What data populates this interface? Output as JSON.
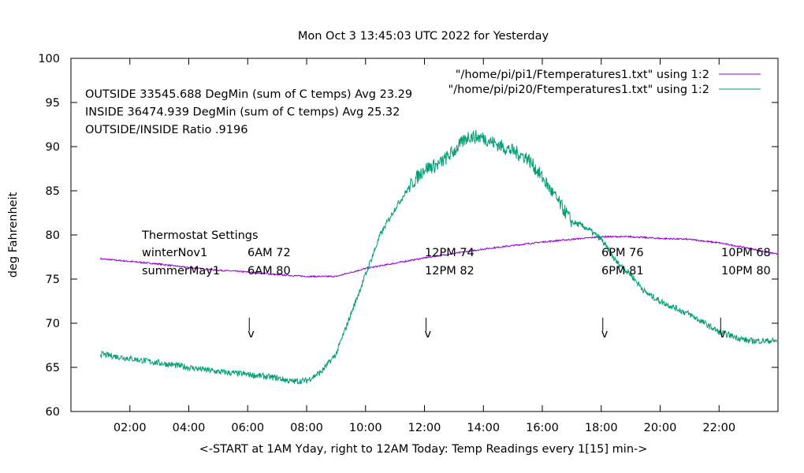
{
  "chart_data": {
    "type": "line",
    "title": "Mon Oct  3 13:45:03 UTC 2022 for Yesterday",
    "xlabel": "<-START at 1AM Yday, right to 12AM Today:  Temp Readings every 1[15] min->",
    "ylabel": "deg Fahrenheit",
    "ylim": [
      60,
      100
    ],
    "xlim_hours": [
      0,
      24
    ],
    "yticks": [
      60,
      65,
      70,
      75,
      80,
      85,
      90,
      95,
      100
    ],
    "xticks": [
      {
        "hour": 2,
        "label": "02:00"
      },
      {
        "hour": 4,
        "label": "04:00"
      },
      {
        "hour": 6,
        "label": "06:00"
      },
      {
        "hour": 8,
        "label": "08:00"
      },
      {
        "hour": 10,
        "label": "10:00"
      },
      {
        "hour": 12,
        "label": "12:00"
      },
      {
        "hour": 14,
        "label": "14:00"
      },
      {
        "hour": 16,
        "label": "16:00"
      },
      {
        "hour": 18,
        "label": "18:00"
      },
      {
        "hour": 20,
        "label": "20:00"
      },
      {
        "hour": 22,
        "label": "22:00"
      }
    ],
    "legend_position": "top-right",
    "grid": false,
    "series": [
      {
        "name": "\"/home/pi/pi1/Ftemperatures1.txt\" using 1:2",
        "color": "#9400d3",
        "x": [
          1,
          2,
          3,
          4,
          5,
          6,
          7,
          8,
          9,
          10,
          11,
          12,
          13,
          14,
          15,
          16,
          17,
          18,
          19,
          20,
          21,
          22,
          23,
          24
        ],
        "y": [
          77.3,
          77.0,
          76.7,
          76.3,
          76.0,
          75.8,
          75.5,
          75.3,
          75.3,
          76.2,
          76.8,
          77.4,
          77.9,
          78.4,
          78.8,
          79.2,
          79.5,
          79.8,
          79.8,
          79.6,
          79.5,
          79.1,
          78.5,
          77.8
        ]
      },
      {
        "name": "\"/home/pi/pi20/Ftemperatures1.txt\" using 1:2",
        "color": "#009e73",
        "x": [
          1,
          2,
          3,
          4,
          5,
          6,
          7,
          7.5,
          8,
          8.5,
          9,
          9.5,
          10,
          10.5,
          11,
          11.5,
          12,
          12.5,
          13,
          13.5,
          14,
          14.5,
          15,
          15.5,
          16,
          16.5,
          17,
          17.5,
          18,
          18.5,
          19,
          19.5,
          20,
          21,
          22,
          23,
          24
        ],
        "y": [
          66.5,
          66.0,
          65.5,
          65.0,
          64.5,
          64.2,
          63.8,
          63.4,
          63.5,
          64.5,
          66.5,
          71.0,
          75.5,
          80.0,
          83.0,
          85.5,
          87.5,
          88.0,
          89.5,
          91.2,
          91.0,
          90.2,
          89.5,
          88.7,
          86.5,
          84.0,
          81.5,
          80.8,
          79.5,
          77.0,
          75.5,
          73.5,
          72.5,
          71.0,
          69.0,
          68.0,
          68.0
        ]
      }
    ],
    "annotations": {
      "stats": [
        "OUTSIDE 33545.688 DegMin (sum of C temps) Avg 23.29",
        "INSIDE 36474.939 DegMin (sum of C temps) Avg 25.32",
        "OUTSIDE/INSIDE Ratio .9196"
      ],
      "thermostat_title": "Thermostat Settings",
      "thermostat_rows": [
        {
          "name": "winterNov1",
          "settings": [
            "6AM 72",
            "12PM 74",
            "6PM 76",
            "10PM 68"
          ]
        },
        {
          "name": "summerMay1",
          "settings": [
            "6AM 80",
            "12PM 82",
            "6PM 81",
            "10PM 80"
          ]
        }
      ],
      "setting_hours": [
        6,
        12,
        18,
        22
      ],
      "marker_label": "v"
    }
  }
}
